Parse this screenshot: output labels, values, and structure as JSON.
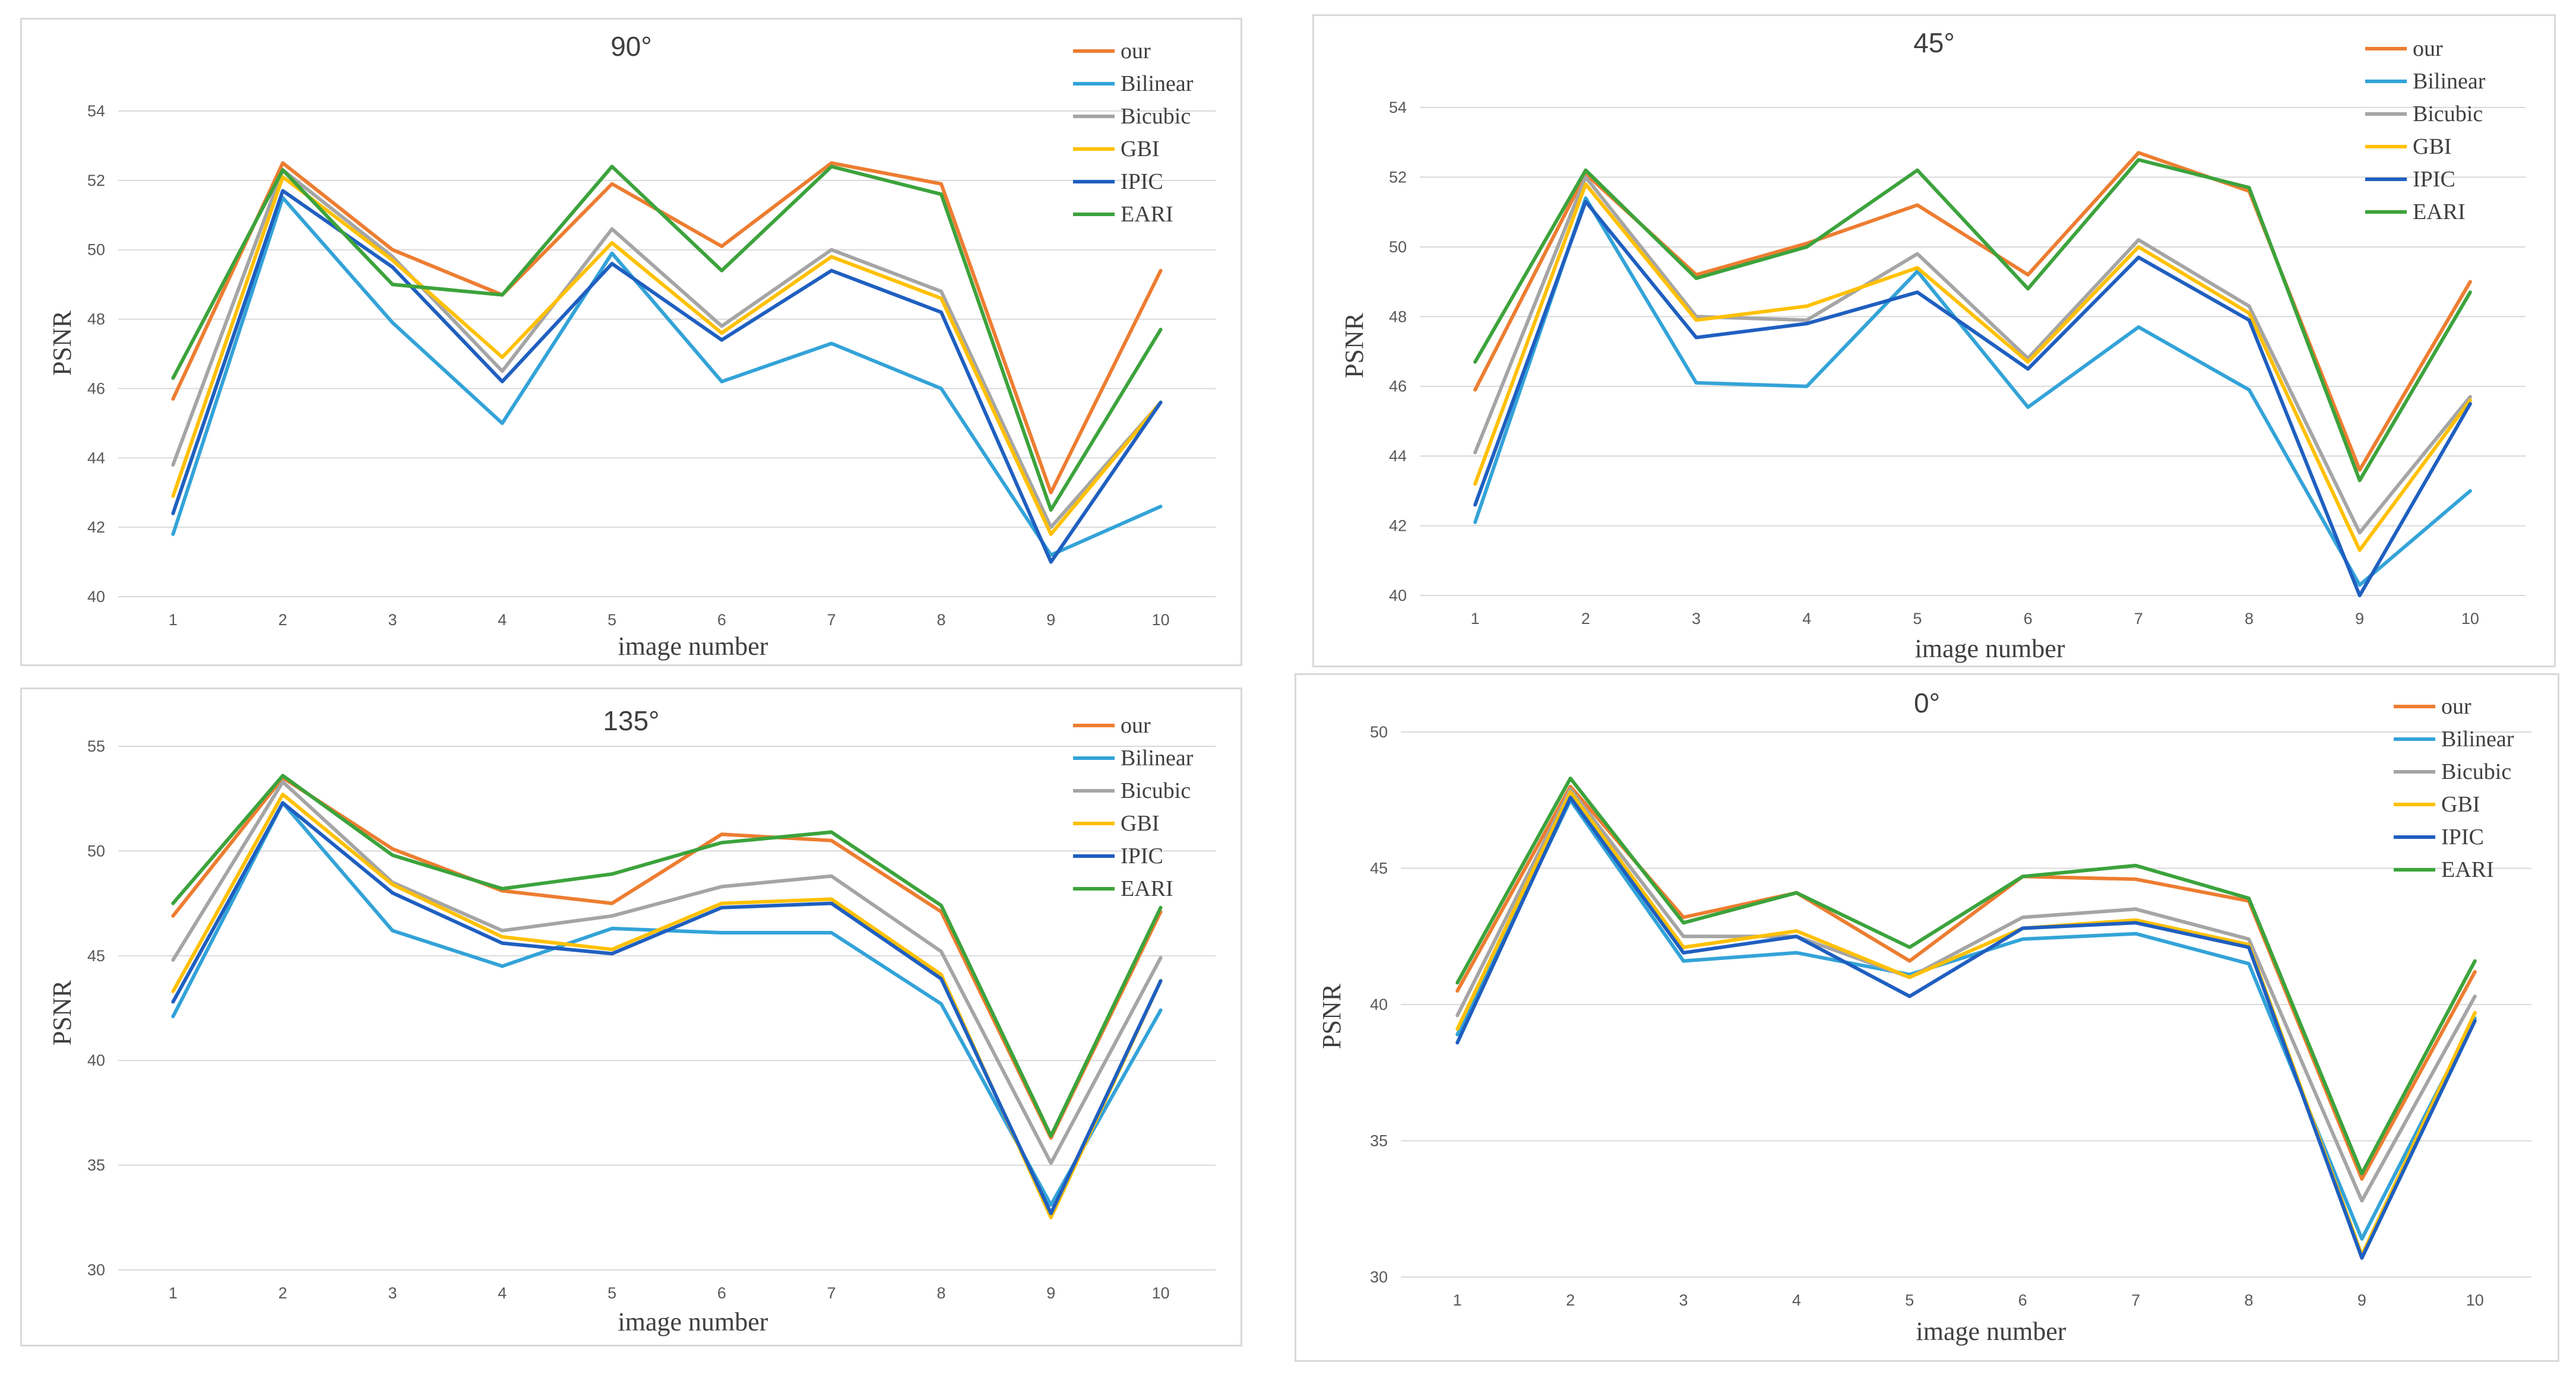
{
  "chart_data": [
    {
      "type": "line",
      "title": "90°",
      "xlabel": "image number",
      "ylabel": "PSNR",
      "x": [
        1,
        2,
        3,
        4,
        5,
        6,
        7,
        8,
        9,
        10
      ],
      "ylim": [
        40,
        54
      ],
      "yticks": [
        40,
        42,
        44,
        46,
        48,
        50,
        52,
        54
      ],
      "series": [
        {
          "name": "our",
          "color": "#ed7d31",
          "values": [
            45.7,
            52.5,
            50.0,
            48.7,
            51.9,
            50.1,
            52.5,
            51.9,
            43.0,
            49.4
          ]
        },
        {
          "name": "Bilinear",
          "color": "#33a3d8",
          "values": [
            41.8,
            51.5,
            47.9,
            45.0,
            49.9,
            46.2,
            47.3,
            46.0,
            41.2,
            42.6
          ]
        },
        {
          "name": "Bicubic",
          "color": "#a5a5a5",
          "values": [
            43.8,
            52.3,
            49.8,
            46.5,
            50.6,
            47.8,
            50.0,
            48.8,
            42.0,
            45.6
          ]
        },
        {
          "name": "GBI",
          "color": "#ffc000",
          "values": [
            42.9,
            52.1,
            49.7,
            46.9,
            50.2,
            47.6,
            49.8,
            48.6,
            41.8,
            45.6
          ]
        },
        {
          "name": "IPIC",
          "color": "#1f5fc0",
          "values": [
            42.4,
            51.7,
            49.5,
            46.2,
            49.6,
            47.4,
            49.4,
            48.2,
            41.0,
            45.6
          ]
        },
        {
          "name": "EARI",
          "color": "#3ca33c",
          "values": [
            46.3,
            52.3,
            49.0,
            48.7,
            52.4,
            49.4,
            52.4,
            51.6,
            42.5,
            47.7
          ]
        }
      ],
      "legend": "top-right"
    },
    {
      "type": "line",
      "title": "45°",
      "xlabel": "image number",
      "ylabel": "PSNR",
      "x": [
        1,
        2,
        3,
        4,
        5,
        6,
        7,
        8,
        9,
        10
      ],
      "ylim": [
        40,
        54
      ],
      "yticks": [
        40,
        42,
        44,
        46,
        48,
        50,
        52,
        54
      ],
      "series": [
        {
          "name": "our",
          "color": "#ed7d31",
          "values": [
            45.9,
            52.1,
            49.2,
            50.1,
            51.2,
            49.2,
            52.7,
            51.6,
            43.6,
            49.0
          ]
        },
        {
          "name": "Bilinear",
          "color": "#33a3d8",
          "values": [
            42.1,
            51.4,
            46.1,
            46.0,
            49.3,
            45.4,
            47.7,
            45.9,
            40.3,
            43.0
          ]
        },
        {
          "name": "Bicubic",
          "color": "#a5a5a5",
          "values": [
            44.1,
            52.0,
            48.0,
            47.9,
            49.8,
            46.8,
            50.2,
            48.3,
            41.8,
            45.7
          ]
        },
        {
          "name": "GBI",
          "color": "#ffc000",
          "values": [
            43.2,
            51.8,
            47.9,
            48.3,
            49.4,
            46.7,
            50.0,
            48.1,
            41.3,
            45.6
          ]
        },
        {
          "name": "IPIC",
          "color": "#1f5fc0",
          "values": [
            42.6,
            51.3,
            47.4,
            47.8,
            48.7,
            46.5,
            49.7,
            47.9,
            40.0,
            45.5
          ]
        },
        {
          "name": "EARI",
          "color": "#3ca33c",
          "values": [
            46.7,
            52.2,
            49.1,
            50.0,
            52.2,
            48.8,
            52.5,
            51.7,
            43.3,
            48.7
          ]
        }
      ],
      "legend": "top-right"
    },
    {
      "type": "line",
      "title": "135°",
      "xlabel": "image number",
      "ylabel": "PSNR",
      "x": [
        1,
        2,
        3,
        4,
        5,
        6,
        7,
        8,
        9,
        10
      ],
      "ylim": [
        30,
        55
      ],
      "yticks": [
        30,
        35,
        40,
        45,
        50,
        55
      ],
      "series": [
        {
          "name": "our",
          "color": "#ed7d31",
          "values": [
            46.9,
            53.5,
            50.1,
            48.1,
            47.5,
            50.8,
            50.5,
            47.1,
            36.3,
            47.1
          ]
        },
        {
          "name": "Bilinear",
          "color": "#33a3d8",
          "values": [
            42.1,
            52.3,
            46.2,
            44.5,
            46.3,
            46.1,
            46.1,
            42.7,
            33.1,
            42.4
          ]
        },
        {
          "name": "Bicubic",
          "color": "#a5a5a5",
          "values": [
            44.8,
            53.3,
            48.5,
            46.2,
            46.9,
            48.3,
            48.8,
            45.2,
            35.1,
            44.9
          ]
        },
        {
          "name": "GBI",
          "color": "#ffc000",
          "values": [
            43.3,
            52.7,
            48.4,
            45.9,
            45.3,
            47.5,
            47.7,
            44.1,
            32.5,
            43.8
          ]
        },
        {
          "name": "IPIC",
          "color": "#1f5fc0",
          "values": [
            42.8,
            52.3,
            48.0,
            45.6,
            45.1,
            47.3,
            47.5,
            43.9,
            32.7,
            43.8
          ]
        },
        {
          "name": "EARI",
          "color": "#3ca33c",
          "values": [
            47.5,
            53.6,
            49.8,
            48.2,
            48.9,
            50.4,
            50.9,
            47.4,
            36.4,
            47.3
          ]
        }
      ],
      "legend": "top-right"
    },
    {
      "type": "line",
      "title": "0°",
      "xlabel": "image number",
      "ylabel": "PSNR",
      "x": [
        1,
        2,
        3,
        4,
        5,
        6,
        7,
        8,
        9,
        10
      ],
      "ylim": [
        30,
        50
      ],
      "yticks": [
        30,
        35,
        40,
        45,
        50
      ],
      "series": [
        {
          "name": "our",
          "color": "#ed7d31",
          "values": [
            40.5,
            48.0,
            43.2,
            44.1,
            41.6,
            44.7,
            44.6,
            43.8,
            33.6,
            41.2
          ]
        },
        {
          "name": "Bilinear",
          "color": "#33a3d8",
          "values": [
            38.9,
            47.5,
            41.6,
            41.9,
            41.1,
            42.4,
            42.6,
            41.5,
            31.4,
            39.5
          ]
        },
        {
          "name": "Bicubic",
          "color": "#a5a5a5",
          "values": [
            39.6,
            47.9,
            42.5,
            42.5,
            41.0,
            43.2,
            43.5,
            42.4,
            32.8,
            40.3
          ]
        },
        {
          "name": "GBI",
          "color": "#ffc000",
          "values": [
            39.1,
            47.8,
            42.1,
            42.7,
            41.0,
            42.8,
            43.1,
            42.2,
            30.8,
            39.7
          ]
        },
        {
          "name": "IPIC",
          "color": "#1f5fc0",
          "values": [
            38.6,
            47.6,
            41.9,
            42.5,
            40.3,
            42.8,
            43.0,
            42.1,
            30.7,
            39.4
          ]
        },
        {
          "name": "EARI",
          "color": "#3ca33c",
          "values": [
            40.8,
            48.3,
            43.0,
            44.1,
            42.1,
            44.7,
            45.1,
            43.9,
            33.8,
            41.6
          ]
        }
      ],
      "legend": "top-right"
    }
  ]
}
